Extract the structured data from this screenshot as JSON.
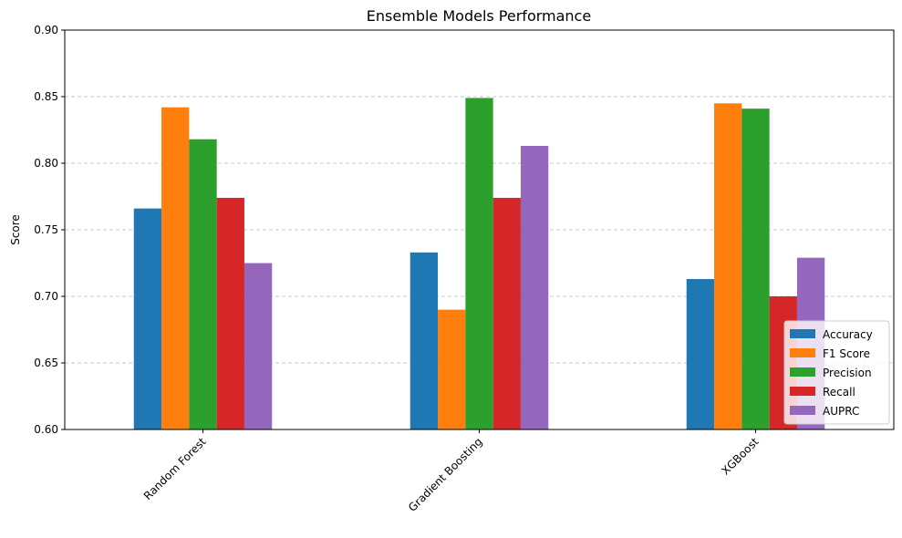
{
  "chart_data": {
    "type": "bar",
    "title": "Ensemble Models Performance",
    "xlabel": "",
    "ylabel": "Score",
    "ylim": [
      0.6,
      0.9
    ],
    "yticks": [
      "0.60",
      "0.65",
      "0.70",
      "0.75",
      "0.80",
      "0.85",
      "0.90"
    ],
    "categories": [
      "Random Forest",
      "Gradient Boosting",
      "XGBoost"
    ],
    "grid": "y-dashed",
    "legend_position": "lower-right",
    "series": [
      {
        "name": "Accuracy",
        "color": "#1f77b4",
        "values": [
          0.766,
          0.733,
          0.713
        ]
      },
      {
        "name": "F1 Score",
        "color": "#ff7f0e",
        "values": [
          0.842,
          0.69,
          0.845
        ]
      },
      {
        "name": "Precision",
        "color": "#2ca02c",
        "values": [
          0.818,
          0.849,
          0.841
        ]
      },
      {
        "name": "Recall",
        "color": "#d62728",
        "values": [
          0.774,
          0.774,
          0.7
        ]
      },
      {
        "name": "AUPRC",
        "color": "#9467bd",
        "values": [
          0.725,
          0.813,
          0.729
        ]
      }
    ]
  }
}
